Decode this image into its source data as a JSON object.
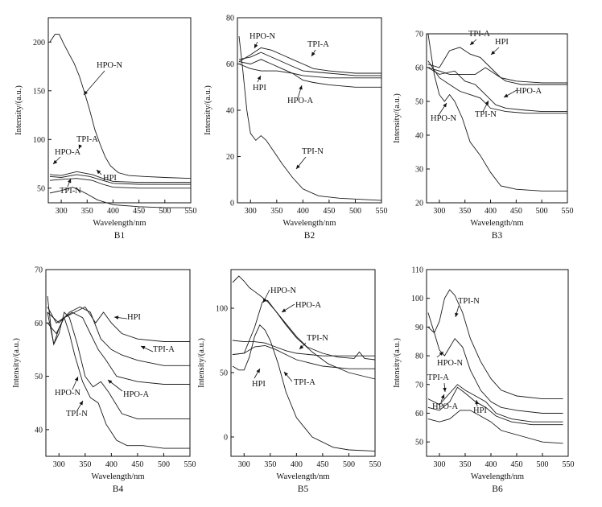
{
  "chart_data": [
    {
      "type": "line",
      "title": "B1",
      "xlabel": "Wavelength/nm",
      "ylabel": "Intensity/(a.u.)",
      "xlim": [
        275,
        550
      ],
      "ylim": [
        35,
        225
      ],
      "xticks": [
        300,
        350,
        400,
        450,
        500,
        550
      ],
      "yticks": [
        50,
        100,
        150,
        200
      ],
      "series": [
        {
          "name": "HPO-N",
          "x": [
            278,
            288,
            296,
            305,
            315,
            325,
            335,
            345,
            355,
            365,
            375,
            385,
            395,
            410,
            430,
            460,
            500,
            550
          ],
          "y": [
            200,
            208,
            208,
            198,
            188,
            178,
            165,
            148,
            130,
            110,
            95,
            82,
            73,
            66,
            63,
            62,
            61,
            60
          ]
        },
        {
          "name": "TPI-A",
          "x": [
            278,
            300,
            330,
            360,
            380,
            400,
            450,
            500,
            550
          ],
          "y": [
            64,
            63,
            67,
            64,
            60,
            57,
            56,
            56,
            56
          ]
        },
        {
          "name": "HPO-A",
          "x": [
            278,
            300,
            330,
            355,
            380,
            400,
            450,
            500,
            550
          ],
          "y": [
            62,
            61,
            64,
            62,
            58,
            55,
            54,
            54,
            54
          ]
        },
        {
          "name": "HPI",
          "x": [
            278,
            300,
            330,
            360,
            380,
            400,
            450,
            500,
            550
          ],
          "y": [
            58,
            59,
            60,
            58,
            54,
            51,
            50,
            50,
            50
          ]
        },
        {
          "name": "TPI-N",
          "x": [
            278,
            295,
            310,
            322,
            335,
            350,
            370,
            400,
            450,
            500,
            550
          ],
          "y": [
            45,
            47,
            49,
            51,
            48,
            44,
            38,
            33,
            31,
            30,
            30
          ]
        }
      ],
      "annotations": [
        "HPO-N",
        "TPI-A",
        "HPO-A",
        "TPI-N",
        "HPI"
      ]
    },
    {
      "type": "line",
      "title": "B2",
      "xlabel": "Wavelength/nm",
      "ylabel": "Intensity/(a.u.)",
      "xlim": [
        275,
        550
      ],
      "ylim": [
        0,
        80
      ],
      "xticks": [
        300,
        350,
        400,
        450,
        500,
        550
      ],
      "yticks": [
        0,
        20,
        40,
        60,
        80
      ],
      "series": [
        {
          "name": "TPI-A",
          "x": [
            278,
            300,
            320,
            340,
            360,
            380,
            400,
            420,
            450,
            500,
            550
          ],
          "y": [
            61,
            64,
            67,
            66,
            64,
            62,
            60,
            58,
            57,
            56,
            56
          ]
        },
        {
          "name": "HPO-N",
          "x": [
            278,
            300,
            320,
            340,
            360,
            380,
            400,
            450,
            500,
            550
          ],
          "y": [
            62,
            63,
            65,
            63,
            61,
            59,
            57,
            56,
            55,
            55
          ]
        },
        {
          "name": "HPI",
          "x": [
            278,
            300,
            320,
            350,
            380,
            400,
            450,
            500,
            550
          ],
          "y": [
            60,
            58,
            57,
            57,
            56,
            55,
            54,
            54,
            54
          ]
        },
        {
          "name": "HPO-A",
          "x": [
            278,
            300,
            320,
            340,
            360,
            380,
            400,
            420,
            450,
            500,
            550
          ],
          "y": [
            61,
            60,
            62,
            60,
            58,
            56,
            53,
            52,
            51,
            50,
            50
          ]
        },
        {
          "name": "TPI-N",
          "x": [
            278,
            285,
            293,
            300,
            310,
            320,
            330,
            345,
            360,
            380,
            400,
            430,
            470,
            550
          ],
          "y": [
            72,
            58,
            40,
            30,
            27,
            29,
            27,
            22,
            17,
            11,
            6,
            3,
            2,
            1
          ]
        }
      ],
      "annotations": [
        "HPO-N",
        "TPI-A",
        "HPI",
        "HPO-A",
        "TPI-N"
      ]
    },
    {
      "type": "line",
      "title": "B3",
      "xlabel": "Wavelength/nm",
      "ylabel": "Intensity/(a.u.)",
      "xlim": [
        275,
        550
      ],
      "ylim": [
        20,
        70
      ],
      "xticks": [
        300,
        350,
        400,
        450,
        500,
        550
      ],
      "yticks": [
        20,
        30,
        40,
        50,
        60,
        70
      ],
      "series": [
        {
          "name": "TPI-A",
          "x": [
            278,
            300,
            320,
            340,
            360,
            380,
            400,
            420,
            450,
            500,
            550
          ],
          "y": [
            61,
            60,
            65,
            66,
            64,
            63,
            60,
            57,
            56,
            55.5,
            55.5
          ]
        },
        {
          "name": "HPI",
          "x": [
            278,
            300,
            320,
            350,
            370,
            390,
            410,
            430,
            460,
            500,
            550
          ],
          "y": [
            60,
            59,
            58,
            58,
            58,
            60,
            58,
            56,
            55,
            55,
            55
          ]
        },
        {
          "name": "HPO-A",
          "x": [
            278,
            300,
            330,
            350,
            370,
            390,
            410,
            430,
            460,
            500,
            550
          ],
          "y": [
            60,
            58,
            59,
            56,
            55,
            52,
            49,
            48,
            47.5,
            47,
            47
          ]
        },
        {
          "name": "TPI-N",
          "x": [
            278,
            300,
            320,
            340,
            360,
            380,
            400,
            430,
            470,
            550
          ],
          "y": [
            62,
            57,
            55,
            53,
            52,
            51,
            48,
            47,
            46.5,
            46.5
          ]
        },
        {
          "name": "HPO-N",
          "x": [
            278,
            290,
            300,
            310,
            320,
            330,
            345,
            360,
            380,
            400,
            420,
            450,
            500,
            550
          ],
          "y": [
            70,
            58,
            52,
            50,
            52,
            50,
            45,
            38,
            34,
            29,
            25,
            24,
            23.5,
            23.5
          ]
        }
      ],
      "annotations": [
        "TPI-A",
        "HPI",
        "HPO-A",
        "HPO-N",
        "TPI-N"
      ]
    },
    {
      "type": "line",
      "title": "B4",
      "xlabel": "Wavelength/nm",
      "ylabel": "Intensity/(a.u.)",
      "xlim": [
        275,
        550
      ],
      "ylim": [
        35,
        70
      ],
      "xticks": [
        300,
        350,
        400,
        450,
        500,
        550
      ],
      "yticks": [
        40,
        50,
        60,
        70
      ],
      "series": [
        {
          "name": "HPI",
          "x": [
            278,
            295,
            310,
            330,
            350,
            370,
            385,
            400,
            420,
            450,
            500,
            550
          ],
          "y": [
            63,
            60,
            61,
            62,
            63,
            60,
            62,
            60,
            58,
            57,
            56.5,
            56.5
          ]
        },
        {
          "name": "TPI-A",
          "x": [
            278,
            300,
            320,
            340,
            360,
            380,
            400,
            420,
            450,
            500,
            550
          ],
          "y": [
            62,
            60,
            62,
            63,
            62,
            57,
            55,
            54,
            53,
            52,
            52
          ]
        },
        {
          "name": "HPO-A",
          "x": [
            278,
            295,
            310,
            325,
            345,
            360,
            375,
            390,
            410,
            450,
            500,
            550
          ],
          "y": [
            60,
            58,
            61,
            62,
            61,
            58,
            55,
            53,
            50,
            49,
            48.5,
            48.5
          ]
        },
        {
          "name": "HPO-N",
          "x": [
            278,
            285,
            290,
            300,
            310,
            320,
            335,
            350,
            365,
            380,
            395,
            420,
            450,
            500,
            550
          ],
          "y": [
            65,
            59,
            56,
            58,
            62,
            61,
            56,
            50,
            48,
            49,
            47,
            43,
            42,
            42,
            42
          ]
        },
        {
          "name": "TPI-N",
          "x": [
            278,
            290,
            300,
            310,
            320,
            330,
            345,
            360,
            375,
            390,
            410,
            430,
            460,
            500,
            550
          ],
          "y": [
            62,
            56,
            59,
            61,
            58,
            54,
            49,
            46,
            45,
            41,
            38,
            37,
            37,
            36.5,
            36.5
          ]
        }
      ],
      "annotations": [
        "HPI",
        "TPI-A",
        "HPO-A",
        "HPO-N",
        "TPI-N"
      ]
    },
    {
      "type": "line",
      "title": "B5",
      "xlabel": "Wavelength/nm",
      "ylabel": "Intensity/(a.u.)",
      "xlim": [
        275,
        550
      ],
      "ylim": [
        -15,
        130
      ],
      "xticks": [
        300,
        350,
        400,
        450,
        500,
        550
      ],
      "yticks": [
        0,
        50,
        100
      ],
      "series": [
        {
          "name": "HPO-N",
          "x": [
            278,
            290,
            300,
            310,
            320,
            330,
            345,
            360,
            380,
            400,
            420,
            450,
            480,
            510,
            520,
            530,
            550
          ],
          "y": [
            120,
            125,
            121,
            116,
            113,
            110,
            105,
            98,
            88,
            78,
            70,
            65,
            62,
            61,
            66,
            61,
            60
          ]
        },
        {
          "name": "HPO-A",
          "x": [
            278,
            300,
            320,
            335,
            345,
            360,
            380,
            400,
            430,
            460,
            500,
            550
          ],
          "y": [
            64,
            65,
            85,
            105,
            106,
            98,
            87,
            77,
            66,
            57,
            50,
            45
          ]
        },
        {
          "name": "TPI-N",
          "x": [
            278,
            300,
            320,
            340,
            360,
            380,
            400,
            450,
            500,
            550
          ],
          "y": [
            75,
            74,
            74,
            73,
            70,
            67,
            65,
            63,
            63,
            63
          ]
        },
        {
          "name": "TPI-A",
          "x": [
            278,
            300,
            320,
            340,
            360,
            380,
            400,
            450,
            500,
            550
          ],
          "y": [
            64,
            65,
            70,
            71,
            68,
            64,
            60,
            55,
            53,
            53
          ]
        },
        {
          "name": "HPI",
          "x": [
            278,
            290,
            300,
            310,
            320,
            330,
            340,
            350,
            365,
            380,
            400,
            430,
            470,
            500,
            550
          ],
          "y": [
            55,
            52,
            52,
            62,
            78,
            87,
            83,
            75,
            57,
            35,
            15,
            0,
            -8,
            -10,
            -11
          ]
        }
      ],
      "annotations": [
        "HPO-N",
        "HPO-A",
        "TPI-N",
        "HPI",
        "TPI-A"
      ]
    },
    {
      "type": "line",
      "title": "B6",
      "xlabel": "Wavelength/nm",
      "ylabel": "Intensity/(a.u.)",
      "xlim": [
        275,
        550
      ],
      "ylim": [
        45,
        110
      ],
      "xticks": [
        300,
        350,
        400,
        450,
        500,
        550
      ],
      "yticks": [
        50,
        60,
        70,
        80,
        90,
        100,
        110
      ],
      "series": [
        {
          "name": "TPI-N",
          "x": [
            278,
            290,
            300,
            310,
            320,
            330,
            345,
            360,
            380,
            400,
            420,
            450,
            500,
            540
          ],
          "y": [
            95,
            88,
            92,
            100,
            103,
            101,
            95,
            86,
            78,
            72,
            68,
            66,
            65,
            65
          ]
        },
        {
          "name": "HPO-N",
          "x": [
            278,
            290,
            300,
            310,
            320,
            330,
            345,
            360,
            380,
            400,
            420,
            450,
            500,
            540
          ],
          "y": [
            90,
            88,
            82,
            80,
            83,
            86,
            83,
            75,
            68,
            64,
            62,
            61,
            60,
            60
          ]
        },
        {
          "name": "TPI-A",
          "x": [
            278,
            300,
            320,
            335,
            350,
            370,
            390,
            410,
            440,
            480,
            540
          ],
          "y": [
            65,
            63,
            67,
            70,
            68,
            66,
            64,
            60,
            58,
            57,
            57
          ]
        },
        {
          "name": "HPO-A",
          "x": [
            278,
            300,
            320,
            335,
            350,
            370,
            390,
            410,
            440,
            480,
            540
          ],
          "y": [
            62,
            61,
            64,
            69,
            67,
            64,
            62,
            59,
            57,
            56,
            56
          ]
        },
        {
          "name": "HPI",
          "x": [
            278,
            300,
            320,
            340,
            360,
            380,
            400,
            420,
            460,
            500,
            540
          ],
          "y": [
            58,
            57,
            58,
            61,
            61,
            59,
            57,
            54,
            52,
            50,
            49.5
          ]
        }
      ],
      "annotations": [
        "TPI-N",
        "HPO-N",
        "TPI-A",
        "HPO-A",
        "HPI"
      ]
    }
  ]
}
